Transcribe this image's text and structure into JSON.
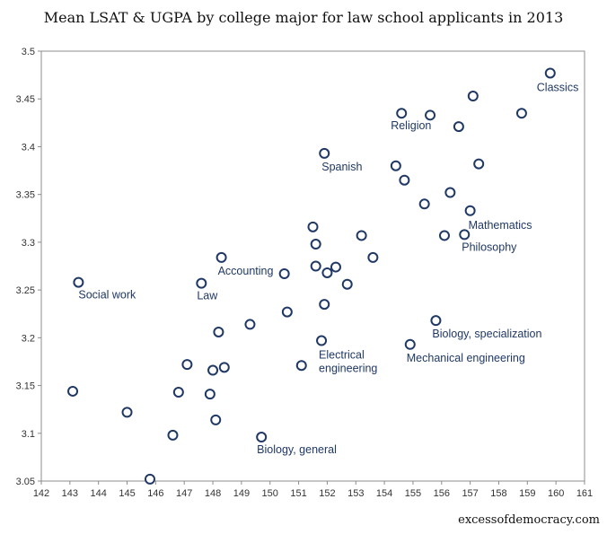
{
  "chart_data": {
    "type": "scatter",
    "title": "Mean LSAT & UGPA by college major for law school applicants in 2013",
    "xlabel": "",
    "ylabel": "",
    "xlim": [
      142,
      161
    ],
    "ylim": [
      3.05,
      3.5
    ],
    "xticks": [
      "142",
      "143",
      "144",
      "145",
      "146",
      "147",
      "148",
      "149",
      "150",
      "151",
      "152",
      "153",
      "154",
      "155",
      "156",
      "157",
      "158",
      "159",
      "160",
      "161"
    ],
    "yticks": [
      "3.05",
      "3.1",
      "3.15",
      "3.2",
      "3.25",
      "3.3",
      "3.35",
      "3.4",
      "3.45",
      "3.5"
    ],
    "grid": false,
    "marker_color": "#1f3864",
    "points": [
      {
        "x": 159.8,
        "y": 3.477,
        "label": "Classics"
      },
      {
        "x": 157.1,
        "y": 3.453
      },
      {
        "x": 158.8,
        "y": 3.435
      },
      {
        "x": 154.6,
        "y": 3.435,
        "label": "Religion"
      },
      {
        "x": 155.6,
        "y": 3.433
      },
      {
        "x": 156.6,
        "y": 3.421
      },
      {
        "x": 151.9,
        "y": 3.393,
        "label": "Spanish"
      },
      {
        "x": 157.3,
        "y": 3.382
      },
      {
        "x": 154.4,
        "y": 3.38
      },
      {
        "x": 154.7,
        "y": 3.365
      },
      {
        "x": 156.3,
        "y": 3.352
      },
      {
        "x": 155.4,
        "y": 3.34
      },
      {
        "x": 157.0,
        "y": 3.333,
        "label": "Mathematics"
      },
      {
        "x": 151.5,
        "y": 3.316
      },
      {
        "x": 153.2,
        "y": 3.307
      },
      {
        "x": 156.1,
        "y": 3.307
      },
      {
        "x": 156.8,
        "y": 3.308,
        "label": "Philosophy"
      },
      {
        "x": 151.6,
        "y": 3.298
      },
      {
        "x": 148.3,
        "y": 3.284,
        "label": "Accounting"
      },
      {
        "x": 153.6,
        "y": 3.284
      },
      {
        "x": 151.6,
        "y": 3.275
      },
      {
        "x": 152.3,
        "y": 3.274
      },
      {
        "x": 152.0,
        "y": 3.268
      },
      {
        "x": 150.5,
        "y": 3.267
      },
      {
        "x": 143.3,
        "y": 3.258,
        "label": "Social work"
      },
      {
        "x": 147.6,
        "y": 3.257,
        "label": "Law"
      },
      {
        "x": 152.7,
        "y": 3.256
      },
      {
        "x": 151.9,
        "y": 3.235
      },
      {
        "x": 150.6,
        "y": 3.227
      },
      {
        "x": 155.8,
        "y": 3.218,
        "label": "Biology, specialization"
      },
      {
        "x": 149.3,
        "y": 3.214
      },
      {
        "x": 148.2,
        "y": 3.206
      },
      {
        "x": 151.8,
        "y": 3.197,
        "label": "Electrical engineering"
      },
      {
        "x": 154.9,
        "y": 3.193,
        "label": "Mechanical engineering"
      },
      {
        "x": 147.1,
        "y": 3.172
      },
      {
        "x": 151.1,
        "y": 3.171
      },
      {
        "x": 148.4,
        "y": 3.169
      },
      {
        "x": 148.0,
        "y": 3.166
      },
      {
        "x": 143.1,
        "y": 3.144
      },
      {
        "x": 146.8,
        "y": 3.143
      },
      {
        "x": 147.9,
        "y": 3.141
      },
      {
        "x": 145.0,
        "y": 3.122
      },
      {
        "x": 148.1,
        "y": 3.114
      },
      {
        "x": 146.6,
        "y": 3.098
      },
      {
        "x": 149.7,
        "y": 3.096,
        "label": "Biology, general"
      },
      {
        "x": 145.8,
        "y": 3.052
      }
    ]
  },
  "credit": "excessofdemocracy.com"
}
